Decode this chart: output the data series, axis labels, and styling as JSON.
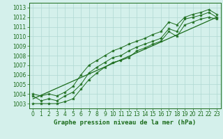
{
  "hours": [
    0,
    1,
    2,
    3,
    4,
    5,
    6,
    7,
    8,
    9,
    10,
    11,
    12,
    13,
    14,
    15,
    16,
    17,
    18,
    19,
    20,
    21,
    22,
    23
  ],
  "pressure_mean": [
    1003.8,
    1003.3,
    1003.5,
    1003.3,
    1003.8,
    1004.2,
    1005.0,
    1006.2,
    1006.8,
    1007.3,
    1007.8,
    1008.0,
    1008.5,
    1008.9,
    1009.2,
    1009.5,
    1009.8,
    1010.8,
    1010.5,
    1011.8,
    1012.0,
    1012.2,
    1012.5,
    1012.0
  ],
  "pressure_min": [
    1003.0,
    1003.0,
    1003.0,
    1003.0,
    1003.2,
    1003.5,
    1004.5,
    1005.5,
    1006.2,
    1006.8,
    1007.3,
    1007.5,
    1007.8,
    1008.5,
    1008.8,
    1009.2,
    1009.5,
    1010.5,
    1010.0,
    1011.2,
    1011.5,
    1011.8,
    1012.0,
    1011.8
  ],
  "pressure_max": [
    1004.0,
    1003.8,
    1004.0,
    1003.8,
    1004.2,
    1004.8,
    1006.0,
    1007.0,
    1007.5,
    1008.0,
    1008.5,
    1008.8,
    1009.2,
    1009.5,
    1009.8,
    1010.2,
    1010.5,
    1011.5,
    1011.2,
    1012.0,
    1012.3,
    1012.5,
    1012.8,
    1012.3
  ],
  "trend_x": [
    0,
    23
  ],
  "trend_y": [
    1003.5,
    1012.0
  ],
  "ylim": [
    1002.5,
    1013.5
  ],
  "xlim": [
    -0.5,
    23.5
  ],
  "yticks": [
    1003,
    1004,
    1005,
    1006,
    1007,
    1008,
    1009,
    1010,
    1011,
    1012,
    1013
  ],
  "xticks": [
    0,
    1,
    2,
    3,
    4,
    5,
    6,
    7,
    8,
    9,
    10,
    11,
    12,
    13,
    14,
    15,
    16,
    17,
    18,
    19,
    20,
    21,
    22,
    23
  ],
  "line_color": "#1a6b1a",
  "bg_color": "#d4f0eb",
  "grid_color": "#b0d8d2",
  "xlabel": "Graphe pression niveau de la mer (hPa)",
  "marker_size": 3.0,
  "tick_fontsize": 5.5,
  "xlabel_fontsize": 6.5
}
